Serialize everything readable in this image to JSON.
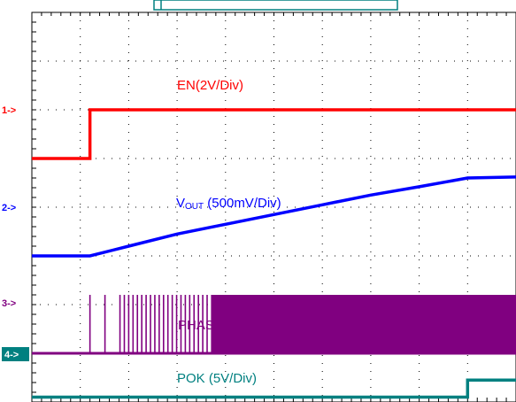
{
  "chart_data": {
    "type": "line",
    "title": "",
    "xlabel": "",
    "ylabel": "",
    "grid": true,
    "grid_divisions": {
      "x": 10,
      "y": 8
    },
    "x": [
      0,
      0.6,
      1.2,
      2,
      3,
      4,
      5,
      6,
      7,
      8,
      9,
      10
    ],
    "series": [
      {
        "name": "EN(2V/Div)",
        "label": "EN(2V/Div)",
        "marker": "1->",
        "color": "#ff0000",
        "ground_div": 5.0,
        "values_div": [
          0,
          0,
          1.0,
          1.0,
          1.0,
          1.0,
          1.0,
          1.0,
          1.0,
          1.0,
          1.0,
          1.0
        ]
      },
      {
        "name": "VOUT (500mV/Div)",
        "label_main": "V",
        "label_sub": "OUT",
        "label_rest": " (500mV/Div)",
        "marker": "2->",
        "color": "#0000ff",
        "ground_div": 3.0,
        "values_div": [
          0,
          0,
          0,
          0.2,
          0.45,
          0.65,
          0.85,
          1.05,
          1.25,
          1.42,
          1.6,
          1.62
        ]
      },
      {
        "name": "PHASE (10V/Div)",
        "label": "PHASE (10V/Div)",
        "marker": "3->",
        "color": "#800080",
        "ground_div": 1.0,
        "high_div": 1.2,
        "burst_start_x": 1.2,
        "continuous_start_x": 3.7,
        "end_x": 10
      },
      {
        "name": "POK (5V/Div)",
        "label": "POK (5V/Div)",
        "marker": "4->",
        "color": "#008080",
        "ground_div": 0.1,
        "values_div": [
          0,
          0,
          0,
          0,
          0,
          0,
          0,
          0,
          0,
          0,
          0.35,
          0.35
        ],
        "rise_x": 9.0
      }
    ]
  }
}
